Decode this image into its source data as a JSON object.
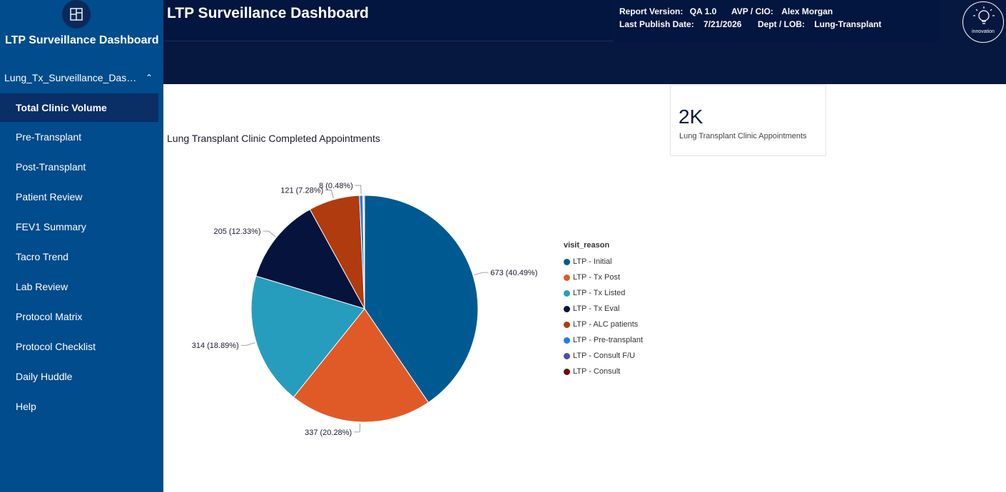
{
  "sidebar": {
    "app_title": "LTP Surveillance Dashboard",
    "report_name": "Lung_Tx_Surveillance_Dashb...",
    "items": [
      {
        "label": "Total Clinic Volume",
        "active": true
      },
      {
        "label": "Pre-Transplant"
      },
      {
        "label": "Post-Transplant"
      },
      {
        "label": "Patient Review"
      },
      {
        "label": "FEV1 Summary"
      },
      {
        "label": "Tacro Trend"
      },
      {
        "label": "Lab Review"
      },
      {
        "label": "Protocol Matrix"
      },
      {
        "label": "Protocol Checklist"
      },
      {
        "label": "Daily Huddle"
      },
      {
        "label": "Help"
      }
    ]
  },
  "header": {
    "title": "LTP Surveillance Dashboard",
    "report_version_label": "Report Version:",
    "report_version": "QA 1.0",
    "avp_label": "AVP / CIO:",
    "avp": "Alex Morgan",
    "publish_label": "Last Publish Date:",
    "publish_date": "7/21/2026",
    "dept_label": "Dept / LOB:",
    "dept": "Lung-Transplant",
    "logo_text": "innovation"
  },
  "card": {
    "value": "2K",
    "label": "Lung Transplant Clinic Appointments"
  },
  "chart_title": "Lung Transplant Clinic Completed Appointments",
  "chart_data": {
    "type": "pie",
    "legend_title": "visit_reason",
    "slices": [
      {
        "name": "LTP - Initial",
        "value": 673,
        "label": "673 (40.49%)",
        "color": "#005a92"
      },
      {
        "name": "LTP - Tx Post",
        "value": 337,
        "label": "337 (20.28%)",
        "color": "#e05a28"
      },
      {
        "name": "LTP - Tx Listed",
        "value": 314,
        "label": "314 (18.89%)",
        "color": "#279dbe"
      },
      {
        "name": "LTP - Tx Eval",
        "value": 205,
        "label": "205 (12.33%)",
        "color": "#06133c"
      },
      {
        "name": "LTP - ALC patients",
        "value": 121,
        "label": "121 (7.28%)",
        "color": "#b03b0e"
      },
      {
        "name": "LTP - Pre-transplant",
        "value": 8,
        "label": "8 (0.48%)",
        "color": "#1f7bf0"
      },
      {
        "name": "LTP - Consult F/U",
        "value": 2,
        "label": "",
        "color": "#4452a8"
      },
      {
        "name": "LTP - Consult",
        "value": 2,
        "label": "",
        "color": "#6b0a0a"
      }
    ]
  }
}
